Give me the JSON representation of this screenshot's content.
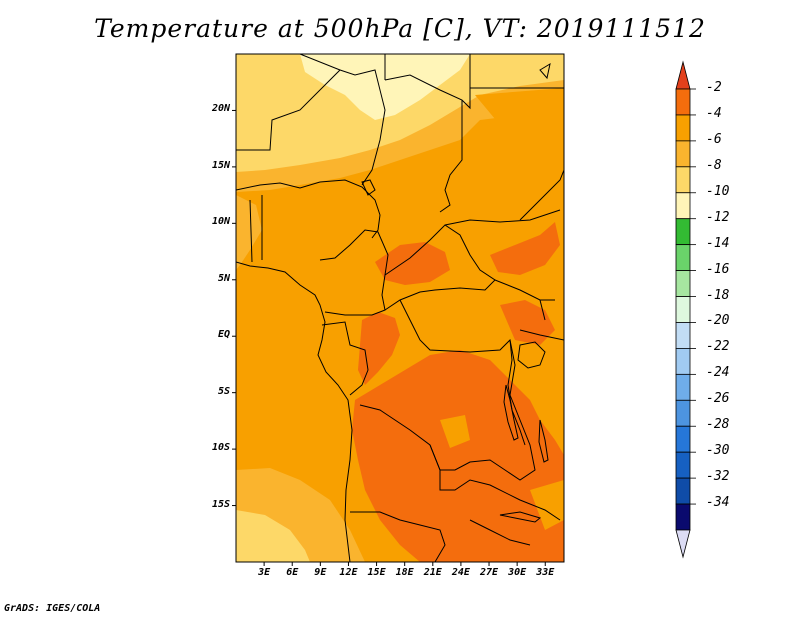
{
  "title": "Temperature at 500hPa [C], VT: 2019111512",
  "footer": "GrADS: IGES/COLA",
  "map": {
    "lat_labels": [
      "20N",
      "15N",
      "10N",
      "5N",
      "EQ",
      "5S",
      "10S",
      "15S"
    ],
    "lon_labels": [
      "3E",
      "6E",
      "9E",
      "12E",
      "15E",
      "18E",
      "21E",
      "24E",
      "27E",
      "30E",
      "33E"
    ],
    "extent": {
      "lon_min": 0,
      "lon_max": 35,
      "lat_min": -20,
      "lat_max": 25
    }
  },
  "colorbar": {
    "labels": [
      "-2",
      "-4",
      "-6",
      "-8",
      "-10",
      "-12",
      "-14",
      "-16",
      "-18",
      "-20",
      "-22",
      "-24",
      "-26",
      "-28",
      "-30",
      "-32",
      "-34"
    ],
    "colors": [
      "#e2401c",
      "#f46d0d",
      "#f8a000",
      "#fab42e",
      "#fdd868",
      "#fff5b8",
      "#33bb33",
      "#6ad36a",
      "#a6e6a0",
      "#def8de",
      "#c2ddf5",
      "#a1cbf2",
      "#6fadea",
      "#4d94e0",
      "#2677d9",
      "#1660c2",
      "#0f4ca8",
      "#0a0a6e",
      "#dcdcf5"
    ]
  },
  "fields": {
    "colors": {
      "hot": "#f46d0d",
      "warm": "#f8a000",
      "mid": "#fab42e",
      "cool": "#fdd868",
      "coolest": "#fff5b8"
    }
  }
}
